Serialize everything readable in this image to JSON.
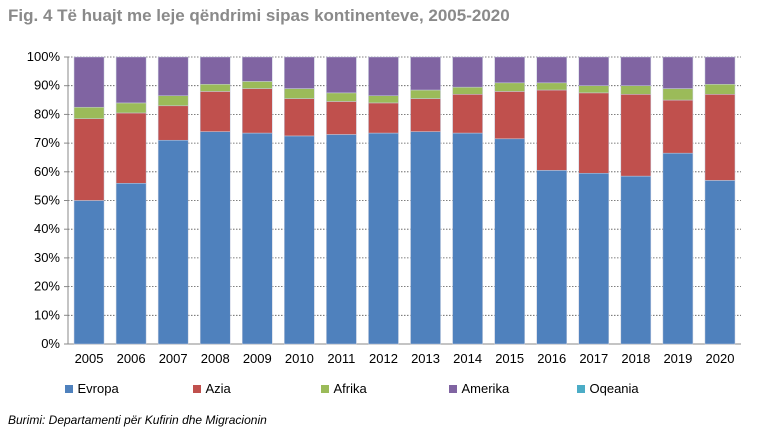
{
  "chart_data": {
    "type": "bar",
    "stacked": true,
    "title": "Fig. 4 Të huajt me leje qëndrimi sipas kontinenteve, 2005-2020",
    "xlabel": "",
    "ylabel": "",
    "ylim": [
      0,
      100
    ],
    "yticks": [
      "0%",
      "10%",
      "20%",
      "30%",
      "40%",
      "50%",
      "60%",
      "70%",
      "80%",
      "90%",
      "100%"
    ],
    "grid": true,
    "legend_position": "bottom",
    "categories": [
      "2005",
      "2006",
      "2007",
      "2008",
      "2009",
      "2010",
      "2011",
      "2012",
      "2013",
      "2014",
      "2015",
      "2016",
      "2017",
      "2018",
      "2019",
      "2020"
    ],
    "series": [
      {
        "name": "Evropa",
        "color": "#4f81bd",
        "values": [
          50,
          56,
          71,
          74,
          73.5,
          72.5,
          73,
          73.5,
          74,
          73.5,
          71.5,
          60.5,
          59.5,
          58.5,
          66.5,
          57
        ]
      },
      {
        "name": "Azia",
        "color": "#c0504d",
        "values": [
          28.5,
          24.5,
          12,
          14,
          15.5,
          13,
          11.5,
          10.5,
          11.5,
          13.5,
          16.5,
          28,
          28,
          28.5,
          18.5,
          30
        ]
      },
      {
        "name": "Afrika",
        "color": "#9bbb59",
        "values": [
          4,
          3.5,
          3.5,
          2.5,
          2.5,
          3.5,
          3,
          2.5,
          3,
          2.5,
          3,
          2.5,
          2.5,
          3,
          4,
          3.5
        ]
      },
      {
        "name": "Amerika",
        "color": "#8064a2",
        "values": [
          17.5,
          16,
          13.5,
          9.5,
          8.5,
          11,
          12.5,
          13.5,
          11.5,
          10.5,
          9,
          9,
          10,
          10,
          11,
          9.5
        ]
      },
      {
        "name": "Oqeania",
        "color": "#4bacc6",
        "values": [
          0,
          0,
          0,
          0,
          0,
          0,
          0,
          0,
          0,
          0,
          0,
          0,
          0,
          0,
          0,
          0
        ]
      }
    ],
    "source": "Burimi: Departamenti për Kufirin dhe Migracionin"
  }
}
